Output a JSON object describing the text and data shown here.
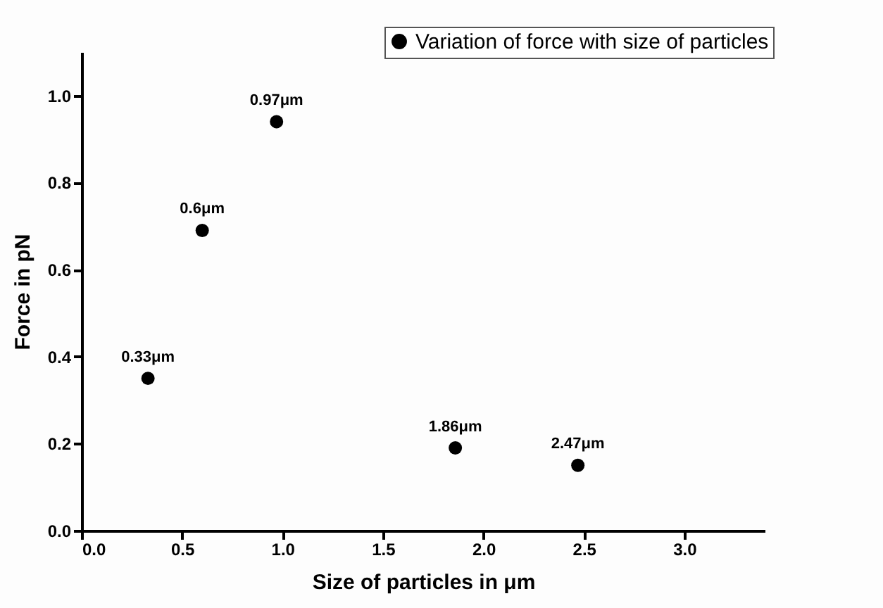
{
  "chart_data": {
    "type": "scatter",
    "xlabel": "Size of particles in μm",
    "ylabel": "Force in pN",
    "x": [
      0.33,
      0.6,
      0.97,
      1.86,
      2.47
    ],
    "series": [
      {
        "name": "Variation of force with size of particles",
        "color": "#000000",
        "values": [
          0.35,
          0.69,
          0.94,
          0.19,
          0.15
        ]
      }
    ],
    "xlim": [
      0,
      3.4
    ],
    "xticks": [
      {
        "value": 0,
        "label": "0.0"
      },
      0.5,
      {
        "value": 1,
        "label": "1.0"
      },
      1.5,
      {
        "value": 2,
        "label": "2.0"
      },
      2.5,
      {
        "value": 3,
        "label": "3.0"
      }
    ],
    "ylim": [
      0,
      1.1
    ],
    "yticks": [
      {
        "value": 0,
        "label": "0.0"
      },
      0.2,
      0.4,
      0.6,
      0.8,
      {
        "value": 1,
        "label": "1.0"
      }
    ],
    "annotations": [
      {
        "text": "0.33μm",
        "x": 0.33,
        "y": 0.35
      },
      {
        "text": "0.6μm",
        "x": 0.6,
        "y": 0.69
      },
      {
        "text": "0.97μm",
        "x": 0.97,
        "y": 0.94
      },
      {
        "text": "1.86μm",
        "x": 1.86,
        "y": 0.19
      },
      {
        "text": "2.47μm",
        "x": 2.47,
        "y": 0.15
      }
    ],
    "grid": false,
    "legend": "top right",
    "marker": "circle"
  }
}
